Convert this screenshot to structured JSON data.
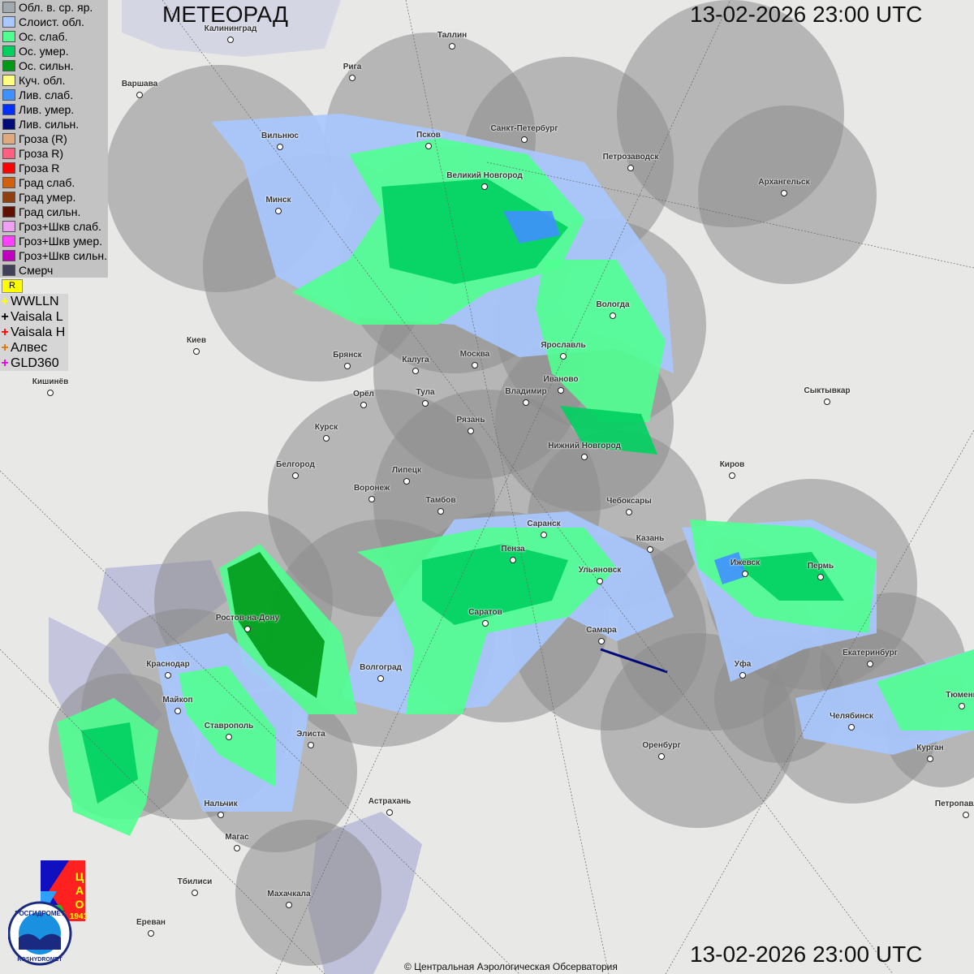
{
  "header": {
    "title": "МЕТЕОРАД",
    "datetime": "13-02-2026  23:00 UTC"
  },
  "footer": {
    "datetime": "13-02-2026  23:00 UTC",
    "copyright": "© Центральная Аэрологическая Обсерватория"
  },
  "legend": [
    {
      "label": "Обл. в. ср. яр.",
      "color": "#a0a8b0"
    },
    {
      "label": "Слоист. обл.",
      "color": "#a8c8ff"
    },
    {
      "label": "Ос. слаб.",
      "color": "#50ff90"
    },
    {
      "label": "Ос. умер.",
      "color": "#00d060"
    },
    {
      "label": "Ос. сильн.",
      "color": "#009a18"
    },
    {
      "label": "Куч. обл.",
      "color": "#ffff80"
    },
    {
      "label": "Лив. слаб.",
      "color": "#4090ff"
    },
    {
      "label": "Лив. умер.",
      "color": "#0030ff"
    },
    {
      "label": "Лив. сильн.",
      "color": "#000a78"
    },
    {
      "label": "Гроза (R)",
      "color": "#e0aa80"
    },
    {
      "label": "Гроза R)",
      "color": "#ff6080"
    },
    {
      "label": "Гроза R",
      "color": "#ff0000"
    },
    {
      "label": "Град слаб.",
      "color": "#d06010"
    },
    {
      "label": "Град умер.",
      "color": "#904010"
    },
    {
      "label": "Град сильн.",
      "color": "#601000"
    },
    {
      "label": "Гроз+Шкв слаб.",
      "color": "#f0a0f0"
    },
    {
      "label": "Гроз+Шкв умер.",
      "color": "#ff40ff"
    },
    {
      "label": "Гроз+Шкв сильн.",
      "color": "#c000c0"
    },
    {
      "label": "Смерч",
      "color": "#404058"
    }
  ],
  "flag_symbol": "R",
  "lightning": [
    {
      "label": "WWLLN",
      "color": "#ffff00"
    },
    {
      "label": "Vaisala L",
      "color": "#000000"
    },
    {
      "label": "Vaisala H",
      "color": "#ff0000"
    },
    {
      "label": "Алвес",
      "color": "#e07000"
    },
    {
      "label": "GLD360",
      "color": "#e000e0"
    }
  ],
  "logo": {
    "org": "РОСГИДРОМЕТ",
    "org_en": "ROSHYDROMET",
    "cao": "ЦАО",
    "year": "1941"
  },
  "cities": [
    "Калининград",
    "Таллин",
    "Рига",
    "Варшава",
    "Санкт-Петербург",
    "Псков",
    "Вильнюс",
    "Петрозаводск",
    "Великий Новгород",
    "Архангельск",
    "Минск",
    "Вологда",
    "Ярославль",
    "Киев",
    "Брянск",
    "Калуга",
    "Москва",
    "Иваново",
    "Кишинёв",
    "Орёл",
    "Тула",
    "Владимир",
    "Сыктывкар",
    "Курск",
    "Рязань",
    "Нижний Новгород",
    "Белгород",
    "Липецк",
    "Киров",
    "Воронеж",
    "Тамбов",
    "Чебоксары",
    "Саранск",
    "Казань",
    "Пенза",
    "Ижевск",
    "Пермь",
    "Ульяновск",
    "Ростов-на-Дону",
    "Саратов",
    "Самара",
    "Екатеринбург",
    "Краснодар",
    "Волгоград",
    "Уфа",
    "Тюмень",
    "Майкоп",
    "Челябинск",
    "Ставрополь",
    "Элиста",
    "Оренбург",
    "Курган",
    "Нальчик",
    "Астрахань",
    "Петропавловск",
    "Магас",
    "Тбилиси",
    "Махачкала",
    "Ереван"
  ]
}
